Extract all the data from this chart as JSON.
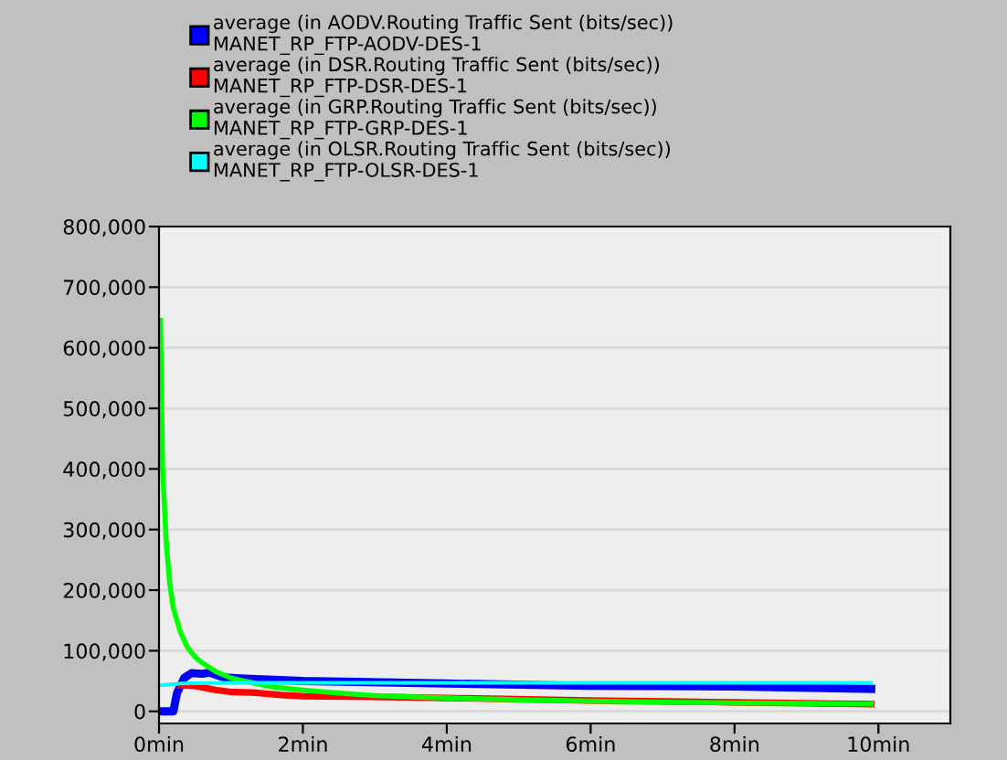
{
  "chart_data": {
    "type": "line",
    "legend": "top",
    "grid": "y",
    "xlim": [
      0,
      11
    ],
    "ylim": [
      -20000,
      800000
    ],
    "xticks": [
      {
        "value": 0,
        "label": "0min"
      },
      {
        "value": 2,
        "label": "2min"
      },
      {
        "value": 4,
        "label": "4min"
      },
      {
        "value": 6,
        "label": "6min"
      },
      {
        "value": 8,
        "label": "8min"
      },
      {
        "value": 10,
        "label": "10min"
      }
    ],
    "yticks": [
      {
        "value": 0,
        "label": "0"
      },
      {
        "value": 100000,
        "label": "100,000"
      },
      {
        "value": 200000,
        "label": "200,000"
      },
      {
        "value": 300000,
        "label": "300,000"
      },
      {
        "value": 400000,
        "label": "400,000"
      },
      {
        "value": 500000,
        "label": "500,000"
      },
      {
        "value": 600000,
        "label": "600,000"
      },
      {
        "value": 700000,
        "label": "700,000"
      },
      {
        "value": 800000,
        "label": "800,000"
      }
    ],
    "series": [
      {
        "name": "average (in AODV.Routing Traffic Sent (bits/sec))\nMANET_RP_FTP-AODV-DES-1",
        "color": "#0000ff",
        "x": [
          0,
          0.2,
          0.25,
          0.35,
          0.45,
          0.6,
          0.7,
          0.8,
          0.9,
          1.2,
          2,
          4,
          6,
          8,
          9.9
        ],
        "values": [
          0,
          0,
          30000,
          55000,
          63000,
          62000,
          64000,
          60000,
          56000,
          54000,
          50000,
          46000,
          42000,
          41000,
          37000
        ]
      },
      {
        "name": "average (in DSR.Routing Traffic Sent (bits/sec))\nMANET_RP_FTP-DSR-DES-1",
        "color": "#ff0000",
        "x": [
          0.3,
          0.5,
          0.8,
          1.0,
          1.3,
          1.7,
          2,
          3,
          4,
          6,
          8,
          9.9
        ],
        "values": [
          43000,
          42000,
          35000,
          32000,
          31000,
          27000,
          25000,
          24000,
          22000,
          18000,
          15000,
          12000
        ]
      },
      {
        "name": "average (in GRP.Routing Traffic Sent (bits/sec))\nMANET_RP_FTP-GRP-DES-1",
        "color": "#00ff00",
        "x": [
          0.02,
          0.05,
          0.1,
          0.15,
          0.2,
          0.3,
          0.4,
          0.5,
          0.6,
          0.8,
          1.0,
          1.3,
          1.6,
          2.0,
          2.5,
          3,
          4,
          5,
          6,
          7,
          8,
          9,
          9.9
        ],
        "values": [
          645000,
          400000,
          280000,
          210000,
          170000,
          130000,
          105000,
          90000,
          80000,
          65000,
          55000,
          47000,
          40000,
          35000,
          30000,
          26000,
          22000,
          19000,
          17000,
          15000,
          14000,
          13000,
          12000
        ]
      },
      {
        "name": "average (in OLSR.Routing Traffic Sent (bits/sec))\nMANET_RP_FTP-OLSR-DES-1",
        "color": "#00ffff",
        "x": [
          0,
          0.3,
          1,
          4,
          9.9
        ],
        "values": [
          43000,
          46000,
          47000,
          47000,
          47000
        ]
      }
    ]
  }
}
